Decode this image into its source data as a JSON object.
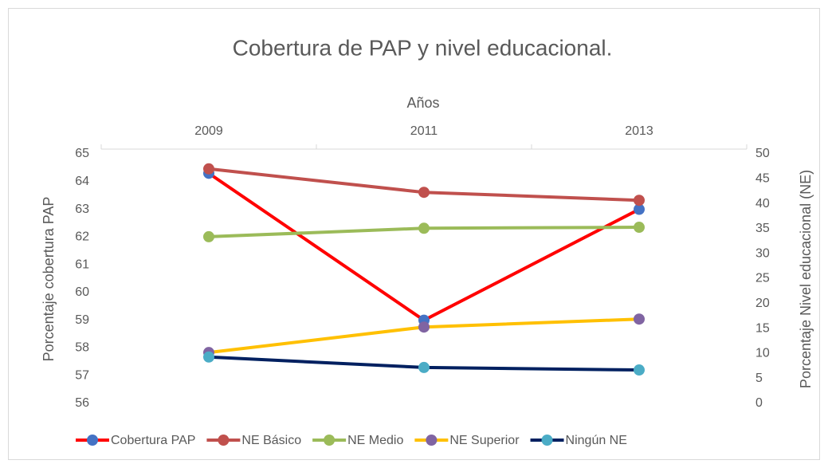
{
  "chart_data": {
    "type": "line",
    "title": "Cobertura de PAP y nivel educacional.",
    "x_label": "Años",
    "y_label": "Porcentaje cobertura PAP",
    "y2_label": "Porcentaje Nivel educacional (NE)",
    "categories": [
      "2009",
      "2011",
      "2013"
    ],
    "ylim": [
      56,
      65
    ],
    "yticks": [
      56,
      57,
      58,
      59,
      60,
      61,
      62,
      63,
      64,
      65
    ],
    "y2lim": [
      0,
      50
    ],
    "y2ticks": [
      0,
      5,
      10,
      15,
      20,
      25,
      30,
      35,
      40,
      45,
      50
    ],
    "grid": false,
    "legend": "bottom",
    "series": [
      {
        "name": "Cobertura PAP",
        "color": "#ff0000",
        "marker_color": "#4472c4",
        "values": [
          64.3,
          59.0,
          63.0
        ]
      },
      {
        "name": "NE Básico",
        "color": "#c0504d",
        "marker_color": "#c0504d",
        "axis": "y2",
        "values": [
          47.0,
          42.3,
          40.7
        ]
      },
      {
        "name": "NE Medio",
        "color": "#9bbb59",
        "marker_color": "#9bbb59",
        "axis": "y2",
        "values": [
          33.4,
          35.1,
          35.3
        ]
      },
      {
        "name": "NE Superior",
        "color": "#ffc000",
        "marker_color": "#8064a2",
        "axis": "y2",
        "values": [
          10.2,
          15.3,
          16.9
        ]
      },
      {
        "name": "Ningún NE",
        "color": "#002060",
        "marker_color": "#4bacc6",
        "axis": "y2",
        "values": [
          9.3,
          7.2,
          6.7
        ]
      }
    ]
  }
}
